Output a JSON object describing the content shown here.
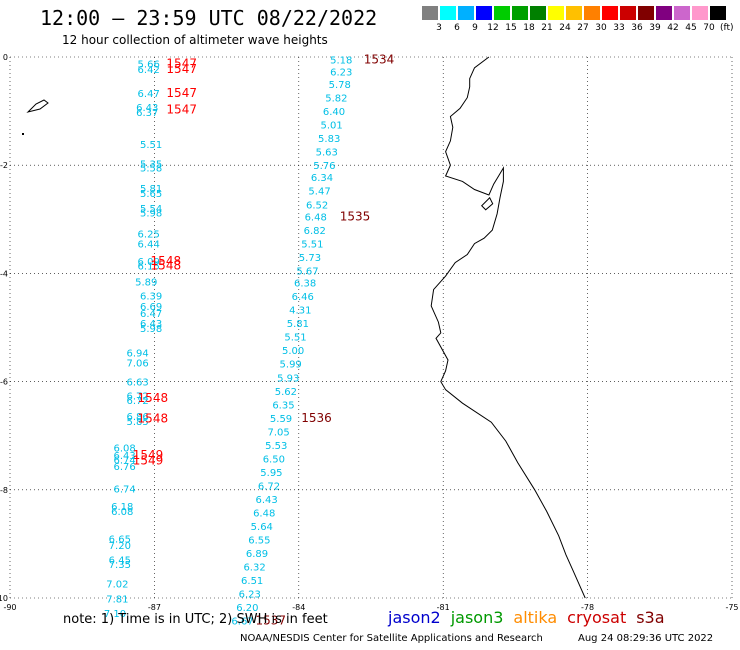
{
  "title": "12:00 – 23:59 UTC 08/22/2022",
  "subtitle": "12 hour collection of altimeter wave heights",
  "color_scale": {
    "unit": "(ft)",
    "colors": [
      "#808080",
      "#00ffff",
      "#00b0ff",
      "#0000ff",
      "#00cc00",
      "#00a000",
      "#008000",
      "#ffff00",
      "#ffc000",
      "#ff8000",
      "#ff0000",
      "#cc0000",
      "#800000",
      "#800080",
      "#cc66cc",
      "#ff99cc",
      "#000000"
    ],
    "labels": [
      "3",
      "6",
      "9",
      "12",
      "15",
      "18",
      "21",
      "24",
      "27",
      "30",
      "33",
      "36",
      "39",
      "42",
      "45",
      "70"
    ]
  },
  "axes": {
    "x_ticks": [
      "-90",
      "-87",
      "-84",
      "-81",
      "-78",
      "-75"
    ],
    "y_ticks": [
      "0",
      "-2",
      "-4",
      "-6",
      "-8",
      "-10"
    ]
  },
  "colors": {
    "swh": "#00bfe6",
    "pass_red": "#ff0000",
    "pass_dark": "#800000",
    "coast": "#000000",
    "grid": "#000000"
  },
  "tracks": [
    {
      "points": [
        {
          "lon": -87.35,
          "lat": -0.12,
          "v": "5.66"
        },
        {
          "lon": -87.35,
          "lat": -0.22,
          "v": "6.42"
        },
        {
          "lon": -87.35,
          "lat": -0.67,
          "v": "6.47"
        },
        {
          "lon": -87.38,
          "lat": -0.92,
          "v": "6.43"
        },
        {
          "lon": -87.38,
          "lat": -1.02,
          "v": "6.37"
        },
        {
          "lon": -87.3,
          "lat": -1.61,
          "v": "5.51"
        },
        {
          "lon": -87.3,
          "lat": -1.97,
          "v": "5.35"
        },
        {
          "lon": -87.3,
          "lat": -2.04,
          "v": "5.58"
        },
        {
          "lon": -87.3,
          "lat": -2.42,
          "v": "5.81"
        },
        {
          "lon": -87.3,
          "lat": -2.51,
          "v": "5.65"
        },
        {
          "lon": -87.3,
          "lat": -2.79,
          "v": "5.54"
        },
        {
          "lon": -87.3,
          "lat": -2.87,
          "v": "5.98"
        },
        {
          "lon": -87.35,
          "lat": -3.26,
          "v": "6.25"
        },
        {
          "lon": -87.35,
          "lat": -3.45,
          "v": "6.44"
        },
        {
          "lon": -87.35,
          "lat": -3.77,
          "v": "6.09"
        },
        {
          "lon": -87.35,
          "lat": -3.85,
          "v": "6.15"
        },
        {
          "lon": -87.4,
          "lat": -4.15,
          "v": "5.89"
        },
        {
          "lon": -87.3,
          "lat": -4.41,
          "v": "6.39"
        },
        {
          "lon": -87.3,
          "lat": -4.6,
          "v": "6.69"
        },
        {
          "lon": -87.3,
          "lat": -4.73,
          "v": "6.47"
        },
        {
          "lon": -87.3,
          "lat": -4.92,
          "v": "6.43"
        },
        {
          "lon": -87.3,
          "lat": -5.01,
          "v": "5.98"
        },
        {
          "lon": -87.58,
          "lat": -5.46,
          "v": "6.94"
        },
        {
          "lon": -87.58,
          "lat": -5.65,
          "v": "7.06"
        },
        {
          "lon": -87.58,
          "lat": -6.0,
          "v": "6.63"
        },
        {
          "lon": -87.58,
          "lat": -6.26,
          "v": "6.72"
        },
        {
          "lon": -87.58,
          "lat": -6.34,
          "v": "6.72"
        },
        {
          "lon": -87.58,
          "lat": -6.64,
          "v": "6.86"
        },
        {
          "lon": -87.58,
          "lat": -6.73,
          "v": "5.85"
        },
        {
          "lon": -87.85,
          "lat": -7.22,
          "v": "6.08"
        },
        {
          "lon": -87.85,
          "lat": -7.36,
          "v": "6.43"
        },
        {
          "lon": -87.85,
          "lat": -7.44,
          "v": "6.74"
        },
        {
          "lon": -87.85,
          "lat": -7.56,
          "v": "6.76"
        },
        {
          "lon": -87.85,
          "lat": -7.98,
          "v": "6.74"
        },
        {
          "lon": -87.9,
          "lat": -8.3,
          "v": "6.18"
        },
        {
          "lon": -87.9,
          "lat": -8.39,
          "v": "6.08"
        },
        {
          "lon": -87.95,
          "lat": -8.9,
          "v": "6.65"
        },
        {
          "lon": -87.95,
          "lat": -9.02,
          "v": "7.20"
        },
        {
          "lon": -87.95,
          "lat": -9.29,
          "v": "6.45"
        },
        {
          "lon": -87.95,
          "lat": -9.37,
          "v": "7.35"
        },
        {
          "lon": -88.0,
          "lat": -9.73,
          "v": "7.02"
        },
        {
          "lon": -88.0,
          "lat": -10.01,
          "v": "7.81"
        },
        {
          "lon": -88.05,
          "lat": -10.28,
          "v": "7.10"
        }
      ],
      "passes": [
        {
          "lon": -86.75,
          "lat": -0.12,
          "id": "1547",
          "color": "#ff0000"
        },
        {
          "lon": -86.75,
          "lat": -0.22,
          "id": "1547",
          "color": "#ff0000"
        },
        {
          "lon": -86.75,
          "lat": -0.67,
          "id": "1547",
          "color": "#ff0000"
        },
        {
          "lon": -86.75,
          "lat": -0.97,
          "id": "1547",
          "color": "#ff0000"
        },
        {
          "lon": -87.08,
          "lat": -3.77,
          "id": "1548",
          "color": "#ff0000"
        },
        {
          "lon": -87.08,
          "lat": -3.85,
          "id": "1548",
          "color": "#ff0000"
        },
        {
          "lon": -87.35,
          "lat": -6.3,
          "id": "1548",
          "color": "#ff0000"
        },
        {
          "lon": -87.35,
          "lat": -6.68,
          "id": "1548",
          "color": "#ff0000"
        },
        {
          "lon": -87.45,
          "lat": -7.36,
          "id": "1549",
          "color": "#ff0000"
        },
        {
          "lon": -87.45,
          "lat": -7.46,
          "id": "1549",
          "color": "#ff0000"
        }
      ]
    },
    {
      "points": [
        {
          "lon": -83.35,
          "lat": -0.05,
          "v": "5.18"
        },
        {
          "lon": -83.35,
          "lat": -0.27,
          "v": "6.23"
        },
        {
          "lon": -83.38,
          "lat": -0.5,
          "v": "5.78"
        },
        {
          "lon": -83.45,
          "lat": -0.75,
          "v": "5.82"
        },
        {
          "lon": -83.5,
          "lat": -1.0,
          "v": "6.40"
        },
        {
          "lon": -83.55,
          "lat": -1.25,
          "v": "5.01"
        },
        {
          "lon": -83.6,
          "lat": -1.5,
          "v": "5.83"
        },
        {
          "lon": -83.65,
          "lat": -1.75,
          "v": "5.63"
        },
        {
          "lon": -83.7,
          "lat": -2.0,
          "v": "5.76"
        },
        {
          "lon": -83.75,
          "lat": -2.22,
          "v": "6.34"
        },
        {
          "lon": -83.8,
          "lat": -2.47,
          "v": "5.47"
        },
        {
          "lon": -83.85,
          "lat": -2.73,
          "v": "6.52"
        },
        {
          "lon": -83.88,
          "lat": -2.95,
          "v": "6.48"
        },
        {
          "lon": -83.9,
          "lat": -3.2,
          "v": "6.82"
        },
        {
          "lon": -83.95,
          "lat": -3.45,
          "v": "5.51"
        },
        {
          "lon": -84.0,
          "lat": -3.7,
          "v": "5.73"
        },
        {
          "lon": -84.05,
          "lat": -3.95,
          "v": "5.67"
        },
        {
          "lon": -84.1,
          "lat": -4.17,
          "v": "6.38"
        },
        {
          "lon": -84.15,
          "lat": -4.42,
          "v": "6.46"
        },
        {
          "lon": -84.2,
          "lat": -4.67,
          "v": "4.31"
        },
        {
          "lon": -84.25,
          "lat": -4.92,
          "v": "5.81"
        },
        {
          "lon": -84.3,
          "lat": -5.17,
          "v": "5.51"
        },
        {
          "lon": -84.35,
          "lat": -5.42,
          "v": "5.00"
        },
        {
          "lon": -84.4,
          "lat": -5.67,
          "v": "5.99"
        },
        {
          "lon": -84.45,
          "lat": -5.92,
          "v": "5.93"
        },
        {
          "lon": -84.5,
          "lat": -6.17,
          "v": "5.62"
        },
        {
          "lon": -84.55,
          "lat": -6.42,
          "v": "6.35"
        },
        {
          "lon": -84.6,
          "lat": -6.67,
          "v": "5.59"
        },
        {
          "lon": -84.65,
          "lat": -6.92,
          "v": "7.05"
        },
        {
          "lon": -84.7,
          "lat": -7.17,
          "v": "5.53"
        },
        {
          "lon": -84.75,
          "lat": -7.42,
          "v": "6.50"
        },
        {
          "lon": -84.8,
          "lat": -7.67,
          "v": "5.95"
        },
        {
          "lon": -84.85,
          "lat": -7.92,
          "v": "6.72"
        },
        {
          "lon": -84.9,
          "lat": -8.17,
          "v": "6.43"
        },
        {
          "lon": -84.95,
          "lat": -8.42,
          "v": "6.48"
        },
        {
          "lon": -85.0,
          "lat": -8.67,
          "v": "5.64"
        },
        {
          "lon": -85.05,
          "lat": -8.92,
          "v": "6.55"
        },
        {
          "lon": -85.1,
          "lat": -9.17,
          "v": "6.89"
        },
        {
          "lon": -85.15,
          "lat": -9.42,
          "v": "6.32"
        },
        {
          "lon": -85.2,
          "lat": -9.67,
          "v": "6.51"
        },
        {
          "lon": -85.25,
          "lat": -9.92,
          "v": "6.23"
        },
        {
          "lon": -85.3,
          "lat": -10.17,
          "v": "6.20"
        },
        {
          "lon": -85.4,
          "lat": -10.42,
          "v": "6.67"
        }
      ],
      "passes": [
        {
          "lon": -82.65,
          "lat": -0.05,
          "id": "1534",
          "color": "#800000"
        },
        {
          "lon": -83.15,
          "lat": -2.95,
          "id": "1535",
          "color": "#800000"
        },
        {
          "lon": -83.95,
          "lat": -6.67,
          "id": "1536",
          "color": "#800000"
        },
        {
          "lon": -84.9,
          "lat": -10.42,
          "id": "1537",
          "color": "#800000"
        }
      ]
    }
  ],
  "note": "note: 1) Time is in UTC; 2) SWH is in feet",
  "legend": [
    {
      "label": "jason2",
      "color": "#0000cc"
    },
    {
      "label": "jason3",
      "color": "#009900"
    },
    {
      "label": "altika",
      "color": "#ff8c00"
    },
    {
      "label": "cryosat",
      "color": "#cc0000"
    },
    {
      "label": "s3a",
      "color": "#800000"
    }
  ],
  "credit": "NOAA/NESDIS Center for Satellite Applications and Research",
  "timestamp": "Aug 24 08:29:36 UTC 2022"
}
